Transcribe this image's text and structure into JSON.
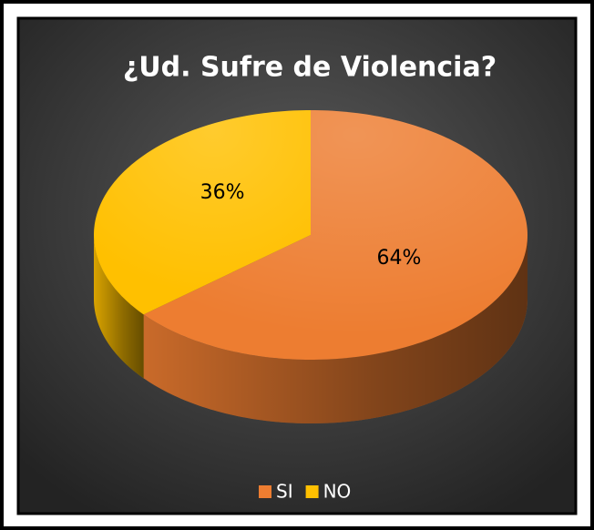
{
  "chart_data": {
    "type": "pie",
    "title": "¿Ud. Sufre de Violencia?",
    "categories": [
      "SI",
      "NO"
    ],
    "values": [
      64,
      36
    ],
    "value_labels": [
      "64%",
      "36%"
    ],
    "colors": [
      "#ed7d31",
      "#ffc000"
    ],
    "legend": "bottom"
  }
}
